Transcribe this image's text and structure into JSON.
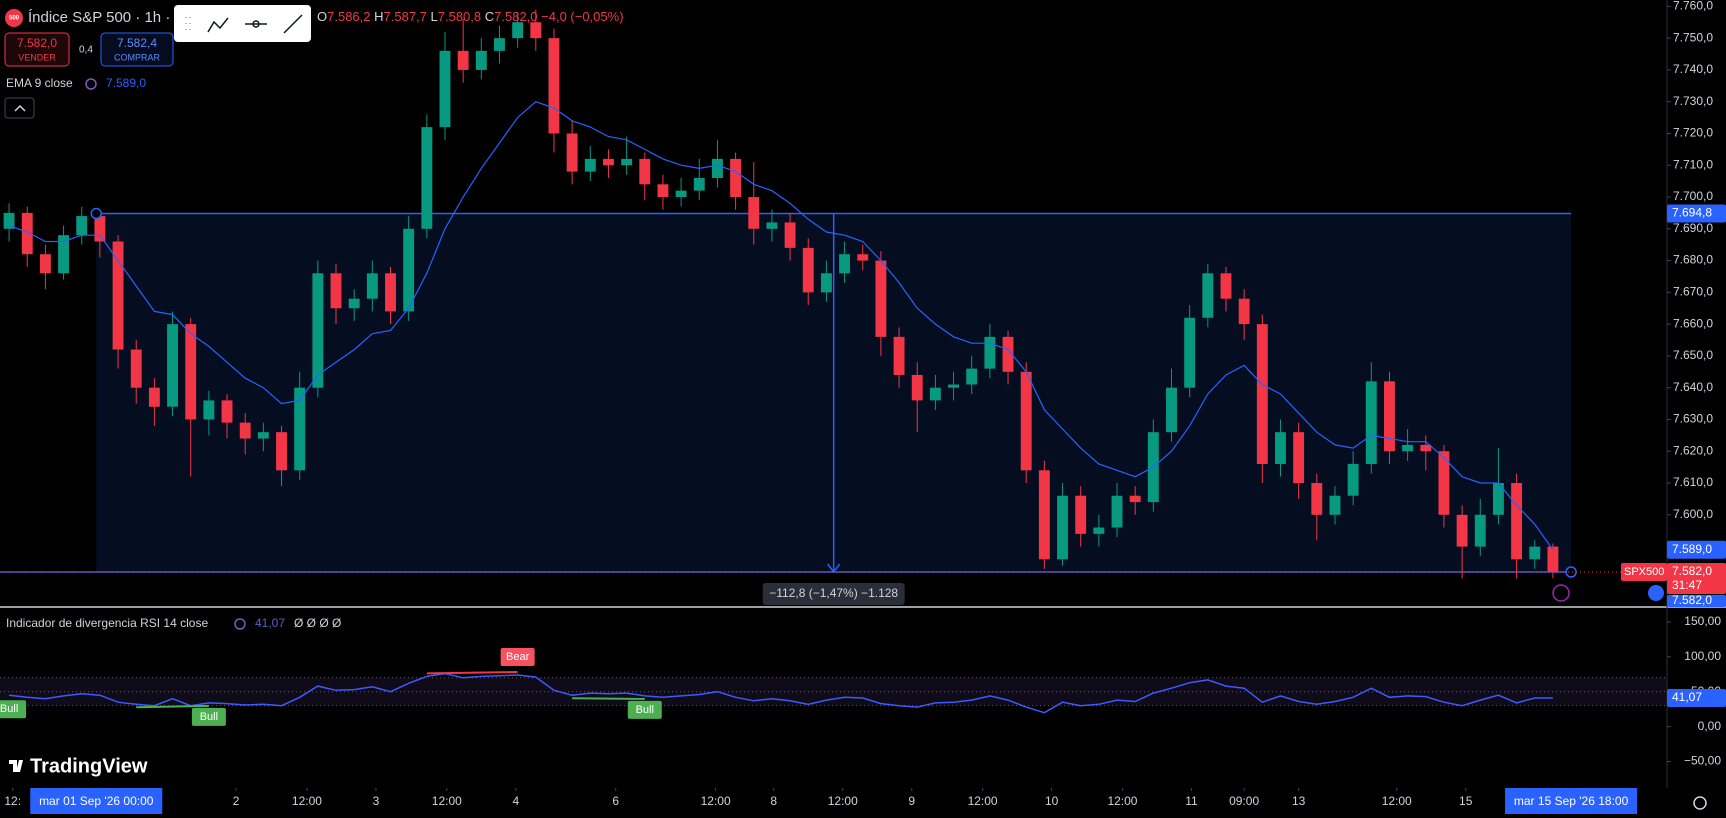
{
  "header": {
    "icon": "500",
    "symbol": "Índice S&P 500 · 1h ·",
    "ohlc_legend": [
      {
        "key": "O",
        "value": "7.586,2"
      },
      {
        "key": "H",
        "value": "7.587,7"
      },
      {
        "key": "L",
        "value": "7.580,8"
      },
      {
        "key": "C",
        "value": "7.582,0"
      }
    ],
    "change": "−4,0 (−0,05%)",
    "sell": {
      "price": "7.582,0",
      "label": "VENDER"
    },
    "spread": "0,4",
    "buy": {
      "price": "7.582,4",
      "label": "COMPRAR"
    },
    "brand": "TradingView"
  },
  "chart_data": [
    {
      "type": "candlestick",
      "up_color": "#089981",
      "down_color": "#f23645",
      "open": [
        7690,
        7695,
        7682,
        7676,
        7688,
        7694,
        7686,
        7652,
        7640,
        7634,
        7660,
        7630,
        7636,
        7629,
        7624,
        7626,
        7614,
        7640,
        7676,
        7665,
        7668,
        7676,
        7664,
        7690,
        7722,
        7746,
        7740,
        7746,
        7750,
        7755,
        7750,
        7720,
        7708,
        7712,
        7710,
        7712,
        7704,
        7700,
        7702,
        7706,
        7712,
        7700,
        7690,
        7692,
        7684,
        7670,
        7676,
        7682,
        7680,
        7656,
        7644,
        7636,
        7640,
        7641,
        7646,
        7656,
        7645,
        7614,
        7586,
        7606,
        7594,
        7596,
        7606,
        7604,
        7626,
        7640,
        7662,
        7676,
        7668,
        7660,
        7616,
        7626,
        7610,
        7600,
        7606,
        7616,
        7642,
        7620,
        7622,
        7620,
        7600,
        7590,
        7600,
        7610,
        7586,
        7590
      ],
      "high": [
        7698,
        7697,
        7685,
        7691,
        7697,
        7696,
        7688,
        7655,
        7643,
        7664,
        7662,
        7639,
        7638,
        7632,
        7629,
        7628,
        7645,
        7680,
        7679,
        7671,
        7680,
        7678,
        7694,
        7726,
        7752,
        7756,
        7750,
        7754,
        7758,
        7759,
        7753,
        7724,
        7716,
        7715,
        7719,
        7714,
        7707,
        7706,
        7712,
        7718,
        7714,
        7711,
        7696,
        7695,
        7687,
        7680,
        7686,
        7685,
        7683,
        7659,
        7648,
        7644,
        7645,
        7650,
        7660,
        7658,
        7648,
        7617,
        7610,
        7609,
        7600,
        7610,
        7609,
        7630,
        7646,
        7666,
        7679,
        7678,
        7671,
        7663,
        7630,
        7629,
        7613,
        7609,
        7620,
        7648,
        7645,
        7627,
        7625,
        7622,
        7603,
        7605,
        7621,
        7613,
        7592,
        7591
      ],
      "low": [
        7686,
        7678,
        7671,
        7674,
        7685,
        7681,
        7646,
        7635,
        7628,
        7631,
        7612,
        7625,
        7624,
        7619,
        7620,
        7609,
        7611,
        7637,
        7660,
        7661,
        7664,
        7660,
        7661,
        7687,
        7718,
        7736,
        7737,
        7742,
        7747,
        7746,
        7714,
        7704,
        7705,
        7706,
        7707,
        7699,
        7696,
        7697,
        7699,
        7703,
        7696,
        7685,
        7686,
        7680,
        7666,
        7667,
        7673,
        7677,
        7650,
        7640,
        7626,
        7633,
        7636,
        7638,
        7643,
        7641,
        7610,
        7583,
        7584,
        7590,
        7590,
        7593,
        7600,
        7601,
        7623,
        7637,
        7659,
        7664,
        7655,
        7610,
        7612,
        7605,
        7592,
        7597,
        7603,
        7613,
        7616,
        7617,
        7614,
        7596,
        7580,
        7587,
        7597,
        7580,
        7583,
        7580
      ],
      "close": [
        7695,
        7682,
        7676,
        7688,
        7694,
        7686,
        7652,
        7640,
        7634,
        7660,
        7630,
        7636,
        7629,
        7624,
        7626,
        7614,
        7640,
        7676,
        7665,
        7668,
        7676,
        7664,
        7690,
        7722,
        7746,
        7740,
        7746,
        7750,
        7755,
        7750,
        7720,
        7708,
        7712,
        7710,
        7712,
        7704,
        7700,
        7702,
        7706,
        7712,
        7700,
        7690,
        7692,
        7684,
        7670,
        7676,
        7682,
        7680,
        7656,
        7644,
        7636,
        7640,
        7641,
        7646,
        7656,
        7645,
        7614,
        7586,
        7606,
        7594,
        7596,
        7606,
        7604,
        7626,
        7640,
        7662,
        7676,
        7668,
        7660,
        7616,
        7626,
        7610,
        7600,
        7606,
        7616,
        7642,
        7620,
        7622,
        7620,
        7600,
        7590,
        7600,
        7610,
        7586,
        7590,
        7582
      ],
      "ema": {
        "name": "EMA 9 close",
        "color": "#2962ff",
        "last_label": "7.589,0",
        "values": [
          7691,
          7689,
          7686,
          7686,
          7688,
          7688,
          7680,
          7672,
          7664,
          7663,
          7657,
          7653,
          7648,
          7643,
          7640,
          7635,
          7636,
          7644,
          7648,
          7652,
          7657,
          7658,
          7665,
          7676,
          7690,
          7700,
          7709,
          7717,
          7725,
          7730,
          7728,
          7724,
          7722,
          7719,
          7718,
          7715,
          7712,
          7710,
          7709,
          7710,
          7708,
          7704,
          7702,
          7698,
          7693,
          7689,
          7688,
          7686,
          7680,
          7673,
          7665,
          7660,
          7656,
          7654,
          7654,
          7652,
          7645,
          7633,
          7627,
          7621,
          7616,
          7614,
          7612,
          7615,
          7620,
          7628,
          7638,
          7644,
          7647,
          7641,
          7638,
          7632,
          7626,
          7622,
          7621,
          7625,
          7624,
          7623,
          7623,
          7618,
          7612,
          7610,
          7610,
          7603,
          7597,
          7589
        ]
      },
      "ylim": [
        7571.3,
        7762
      ],
      "yticks": [
        {
          "value": 7760,
          "label": "7.760,0"
        },
        {
          "value": 7750,
          "label": "7.750,0"
        },
        {
          "value": 7740,
          "label": "7.740,0"
        },
        {
          "value": 7730,
          "label": "7.730,0"
        },
        {
          "value": 7720,
          "label": "7.720,0"
        },
        {
          "value": 7710,
          "label": "7.710,0"
        },
        {
          "value": 7700,
          "label": "7.700,0"
        },
        {
          "value": 7690,
          "label": "7.690,0"
        },
        {
          "value": 7680,
          "label": "7.680,0"
        },
        {
          "value": 7670,
          "label": "7.670,0"
        },
        {
          "value": 7660,
          "label": "7.660,0"
        },
        {
          "value": 7650,
          "label": "7.650,0"
        },
        {
          "value": 7640,
          "label": "7.640,0"
        },
        {
          "value": 7630,
          "label": "7.630,0"
        },
        {
          "value": 7620,
          "label": "7.620,0"
        },
        {
          "value": 7610,
          "label": "7.610,0"
        },
        {
          "value": 7600,
          "label": "7.600,0"
        }
      ],
      "xlim": [
        0,
        86
      ],
      "xticks": [
        {
          "value": 0.7,
          "label": "12:"
        },
        {
          "value": 13,
          "label": "2"
        },
        {
          "value": 16.9,
          "label": "12:00"
        },
        {
          "value": 20.7,
          "label": "3"
        },
        {
          "value": 24.6,
          "label": "12:00"
        },
        {
          "value": 28.4,
          "label": "4"
        },
        {
          "value": 33.9,
          "label": "6"
        },
        {
          "value": 39.4,
          "label": "12:00"
        },
        {
          "value": 42.6,
          "label": "8"
        },
        {
          "value": 46.4,
          "label": "12:00"
        },
        {
          "value": 50.2,
          "label": "9"
        },
        {
          "value": 54.1,
          "label": "12:00"
        },
        {
          "value": 57.9,
          "label": "10"
        },
        {
          "value": 61.8,
          "label": "12:00"
        },
        {
          "value": 65.6,
          "label": "11"
        },
        {
          "value": 68.5,
          "label": "09:00"
        },
        {
          "value": 71.5,
          "label": "13"
        },
        {
          "value": 76.9,
          "label": "12:00"
        },
        {
          "value": 80.7,
          "label": "15"
        }
      ],
      "range": {
        "top": {
          "value": 7694.8,
          "label": "7.694,8"
        },
        "bottom": {
          "value": 7582.0,
          "label": "7.582,0"
        },
        "start": {
          "value": 5.3,
          "label": "mar 01 Sep '26  00:00"
        },
        "end": {
          "value": 86.5,
          "label": "mar 15 Sep '26  18:00"
        },
        "label": "−112,8 (−1,47%) −1.128"
      },
      "last_price": {
        "value": 7582.0,
        "label": "7.582,0",
        "symbol": "SPX500",
        "countdown": "31:47"
      }
    },
    {
      "type": "line",
      "title": "Indicador de divergencia RSI 14 close",
      "last_label": "41,07",
      "extra": "Ø Ø Ø Ø",
      "color": "#3d5afe",
      "values": [
        45,
        42,
        40,
        44,
        47,
        45,
        35,
        32,
        30,
        40,
        30,
        34,
        33,
        31,
        32,
        30,
        42,
        58,
        52,
        53,
        57,
        50,
        62,
        72,
        76,
        70,
        72,
        73,
        74,
        71,
        52,
        45,
        48,
        47,
        48,
        44,
        42,
        44,
        46,
        50,
        42,
        37,
        40,
        37,
        32,
        38,
        42,
        41,
        33,
        30,
        28,
        34,
        35,
        38,
        44,
        38,
        28,
        20,
        35,
        30,
        32,
        38,
        36,
        48,
        55,
        63,
        67,
        58,
        55,
        35,
        44,
        36,
        32,
        36,
        42,
        55,
        42,
        44,
        43,
        35,
        30,
        38,
        45,
        34,
        41,
        41.07
      ],
      "ylim": [
        -88,
        170
      ],
      "yticks": [
        {
          "value": 150,
          "label": "150,00"
        },
        {
          "value": 100,
          "label": "100,00"
        },
        {
          "value": 50,
          "label": "50,00"
        },
        {
          "value": 0,
          "label": "0,00"
        },
        {
          "value": -50,
          "label": "−50,00"
        }
      ],
      "levels": [
        70,
        50,
        30
      ],
      "signals": [
        {
          "label": "Bull",
          "start": 0.5,
          "end": 0.5
        },
        {
          "label": "Bull",
          "start": 7.5,
          "end": 11.5
        },
        {
          "label": "Bear",
          "start": 23.5,
          "end": 28.5
        },
        {
          "label": "Bull",
          "start": 31.5,
          "end": 35.5
        }
      ]
    }
  ]
}
